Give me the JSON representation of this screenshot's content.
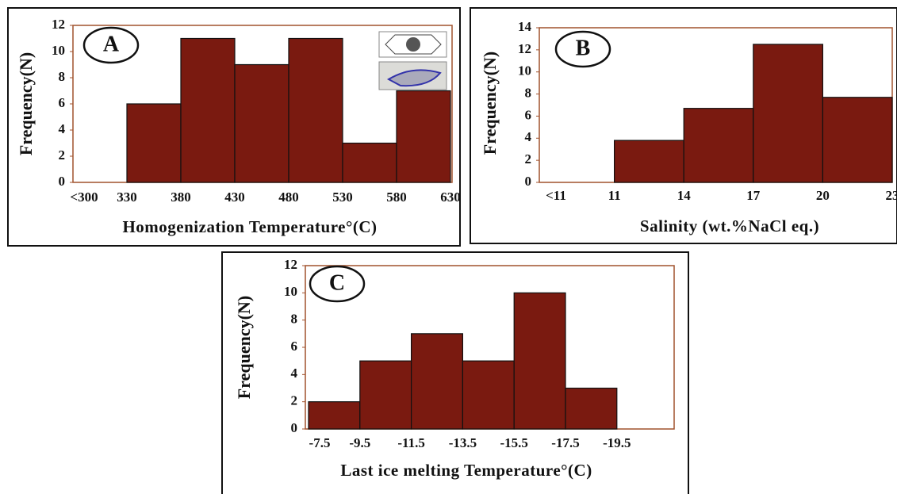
{
  "chart_data": [
    {
      "type": "histogram",
      "panel_label": "A",
      "y_label": "Frequency(N)",
      "x_label": "Homogenization Temperature°(C)",
      "bins": [
        "<300",
        330,
        380,
        430,
        480,
        530,
        580,
        630
      ],
      "values": [
        0,
        6,
        11,
        9,
        11,
        3,
        7
      ],
      "color": "#7a1a10",
      "ylim": [
        0,
        12
      ],
      "yticks": [
        0,
        2,
        4,
        6,
        8,
        10,
        12
      ]
    },
    {
      "type": "histogram",
      "panel_label": "B",
      "y_label": "Frequency(N)",
      "x_label": "Salinity (wt.%NaCl eq.)",
      "bins": [
        "<11",
        11,
        14,
        17,
        20,
        23
      ],
      "values": [
        0,
        3.8,
        6.7,
        12.5,
        7.7
      ],
      "color": "#7a1a10",
      "ylim": [
        0,
        14
      ],
      "yticks": [
        0,
        2,
        4,
        6,
        8,
        10,
        12,
        14
      ]
    },
    {
      "type": "histogram",
      "panel_label": "C",
      "y_label": "Frequency(N)",
      "x_label": "Last ice melting Temperature°(C)",
      "bins": [
        -7.5,
        -9.5,
        -11.5,
        -13.5,
        -15.5,
        -17.5,
        -19.5
      ],
      "values": [
        2,
        5,
        7,
        5,
        10,
        3
      ],
      "color": "#7a1a10",
      "ylim": [
        0,
        12
      ],
      "yticks": [
        0,
        2,
        4,
        6,
        8,
        10,
        12
      ]
    }
  ]
}
